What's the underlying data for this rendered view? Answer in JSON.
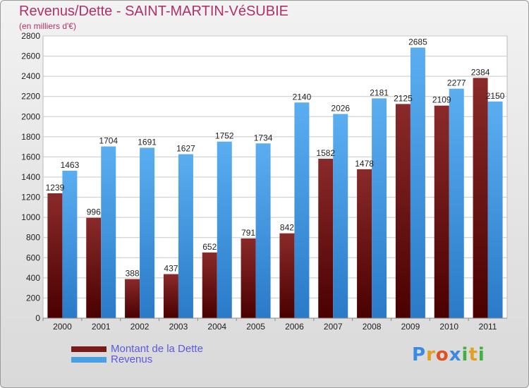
{
  "title": "Revenus/Dette - SAINT-MARTIN-VéSUBIE",
  "subtitle": "(en milliers d'€)",
  "logo": {
    "text": "Proxiti",
    "letters": [
      {
        "ch": "P",
        "color": "#3a8be0"
      },
      {
        "ch": "r",
        "color": "#e0a020"
      },
      {
        "ch": "o",
        "color": "#e05020"
      },
      {
        "ch": "x",
        "color": "#3a8be0"
      },
      {
        "ch": "i",
        "color": "#40b040"
      },
      {
        "ch": "t",
        "color": "#e0a020"
      },
      {
        "ch": "i",
        "color": "#40b040"
      }
    ]
  },
  "colors": {
    "dette": "#7a1a1a",
    "revenus": "#4a9fe0"
  },
  "chart_data": {
    "type": "bar",
    "categories": [
      "2000",
      "2001",
      "2002",
      "2003",
      "2004",
      "2005",
      "2006",
      "2007",
      "2008",
      "2009",
      "2010",
      "2011"
    ],
    "series": [
      {
        "name": "Montant de la Dette",
        "values": [
          1239,
          996,
          388,
          437,
          652,
          791,
          842,
          1582,
          1478,
          2125,
          2109,
          2384
        ]
      },
      {
        "name": "Revenus",
        "values": [
          1463,
          1704,
          1691,
          1627,
          1752,
          1734,
          2140,
          2026,
          2181,
          2685,
          2277,
          2150
        ]
      }
    ],
    "ylim": [
      0,
      2800
    ],
    "yticks": [
      "0",
      "200",
      "400",
      "600",
      "800",
      "1000",
      "1200",
      "1400",
      "1600",
      "1800",
      "2000",
      "2200",
      "2400",
      "2600",
      "2800"
    ],
    "grid": true,
    "legend": "bottom-left"
  }
}
